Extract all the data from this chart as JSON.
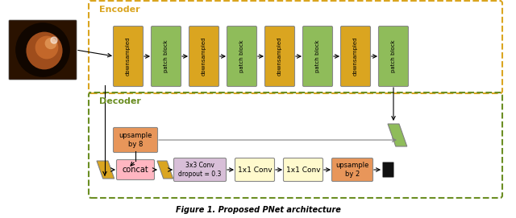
{
  "title": "Figure 1. Proposed PNet architecture",
  "encoder_label": "Encoder",
  "decoder_label": "Decoder",
  "encoder_border_color": "#DAA520",
  "decoder_border_color": "#6B8E23",
  "downsample_color": "#DAA520",
  "patch_block_color": "#8FBC5A",
  "concat_color": "#FFB6C1",
  "conv3x3_color": "#D8BFD8",
  "conv1x1_color": "#FFFACD",
  "upsample8_color": "#E8965A",
  "upsample2_color": "#E8965A",
  "feature_color": "#8FBC5A",
  "skip_color": "#DAA520",
  "background": "#ffffff",
  "encoder_blocks": [
    "downsampled",
    "patch block",
    "downsampled",
    "patch block",
    "downsampled",
    "patch block",
    "downsampled",
    "patch block"
  ]
}
